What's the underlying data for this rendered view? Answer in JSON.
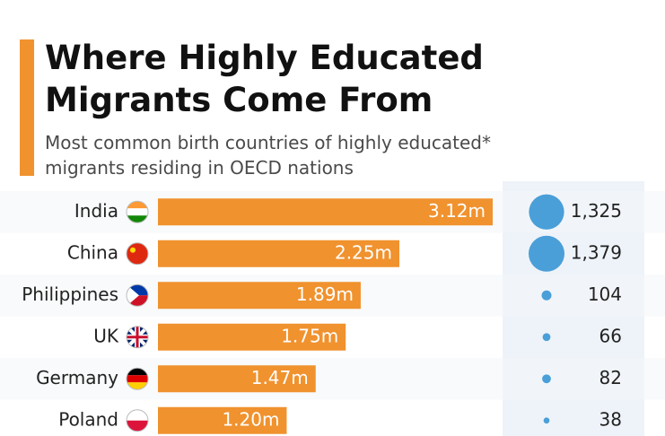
{
  "chart_data": {
    "type": "bar",
    "title": [
      "Where Highly Educated",
      "Migrants Come From"
    ],
    "subtitle": [
      "Most common birth countries of highly educated*",
      "migrants residing in OECD nations"
    ],
    "categories": [
      "India",
      "China",
      "Philippines",
      "UK",
      "Germany",
      "Poland"
    ],
    "values": [
      3.12,
      2.25,
      1.89,
      1.75,
      1.47,
      1.2
    ],
    "value_labels": [
      "3.12m",
      "2.25m",
      "1.89m",
      "1.75m",
      "1.47m",
      "1.20m"
    ],
    "color": "#f0922e",
    "population": {
      "values": [
        1325,
        1379,
        104,
        66,
        82,
        38
      ],
      "value_labels": [
        "1,325",
        "1,379",
        "104",
        "66",
        "82",
        "38"
      ],
      "color": "#4a9fd8"
    }
  }
}
